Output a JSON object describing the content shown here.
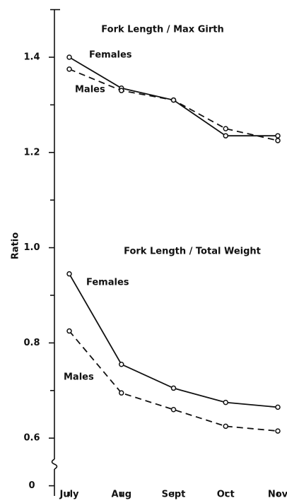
{
  "chart_data": {
    "type": "line",
    "ylabel": "Ratio",
    "annotations": [
      "Fork Length / Max Girth",
      "Fork Length / Total Weight"
    ],
    "categories": [
      "July",
      "Aug",
      "Sept",
      "Oct",
      "Nov"
    ],
    "series": [
      {
        "name": "Females",
        "color": "#111111",
        "dashed": false,
        "values": [
          1.4,
          1.335,
          1.31,
          1.235,
          1.235
        ]
      },
      {
        "name": "Males",
        "color": "#111111",
        "dashed": true,
        "values": [
          1.375,
          1.33,
          1.31,
          1.25,
          1.225
        ]
      },
      {
        "name": "Females",
        "color": "#111111",
        "dashed": false,
        "values": [
          0.945,
          0.755,
          0.705,
          0.675,
          0.665
        ]
      },
      {
        "name": "Males",
        "color": "#111111",
        "dashed": true,
        "values": [
          0.825,
          0.695,
          0.66,
          0.625,
          0.615
        ]
      }
    ],
    "ylim": [
      0.5,
      1.5
    ],
    "yticks": [
      1.4,
      1.2,
      {
        "value": 1,
        "label": "1.0"
      },
      0.8,
      0.6,
      0
    ],
    "minor_yticks": [
      1.5,
      1.3,
      1.1,
      0.9,
      0.7
    ],
    "axis_break": true
  }
}
